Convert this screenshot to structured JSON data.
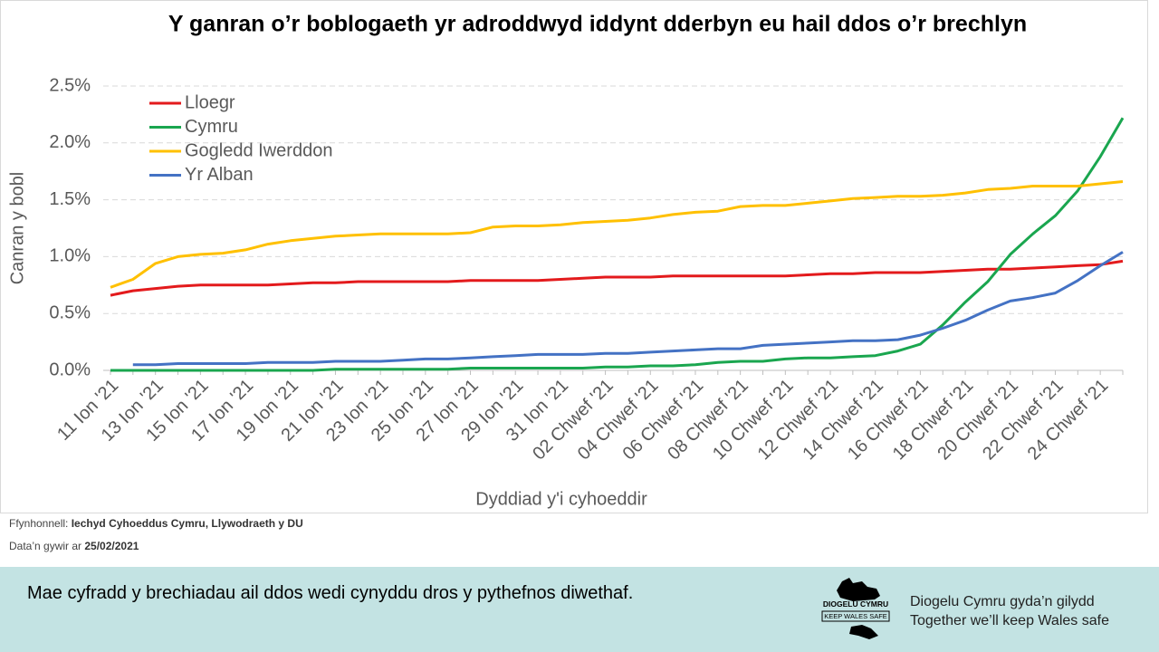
{
  "chart_data": {
    "type": "line",
    "title": "Y ganran o’r boblogaeth yr adroddwyd iddynt dderbyn eu hail ddos o’r brechlyn",
    "x_label": "Dyddiad y'i cyhoeddir",
    "y_label": "Canran y bobl",
    "categories": [
      "11 Ion '21",
      null,
      "13 Ion '21",
      null,
      "15 Ion '21",
      null,
      "17 Ion '21",
      null,
      "19 Ion '21",
      null,
      "21 Ion '21",
      null,
      "23 Ion '21",
      null,
      "25 Ion '21",
      null,
      "27 Ion '21",
      null,
      "29 Ion '21",
      null,
      "31 Ion '21",
      null,
      "02 Chwef '21",
      null,
      "04 Chwef '21",
      null,
      "06 Chwef '21",
      null,
      "08 Chwef '21",
      null,
      "10 Chwef '21",
      null,
      "12 Chwef '21",
      null,
      "14 Chwef '21",
      null,
      "16 Chwef '21",
      null,
      "18 Chwef '21",
      null,
      "20 Chwef '21",
      null,
      "22 Chwef '21",
      null,
      "24 Chwef '21",
      null
    ],
    "series": [
      {
        "name": "Lloegr",
        "color": "#e31a1c",
        "values": [
          0.66,
          0.7,
          0.72,
          0.74,
          0.75,
          0.75,
          0.75,
          0.75,
          0.76,
          0.77,
          0.77,
          0.78,
          0.78,
          0.78,
          0.78,
          0.78,
          0.79,
          0.79,
          0.79,
          0.79,
          0.8,
          0.81,
          0.82,
          0.82,
          0.82,
          0.83,
          0.83,
          0.83,
          0.83,
          0.83,
          0.83,
          0.84,
          0.85,
          0.85,
          0.86,
          0.86,
          0.86,
          0.87,
          0.88,
          0.89,
          0.89,
          0.9,
          0.91,
          0.92,
          0.93,
          0.96
        ]
      },
      {
        "name": "Cymru",
        "color": "#1aa64f",
        "values": [
          0,
          0,
          0,
          0,
          0,
          0,
          0,
          0,
          0,
          0,
          0.01,
          0.01,
          0.01,
          0.01,
          0.01,
          0.01,
          0.02,
          0.02,
          0.02,
          0.02,
          0.02,
          0.02,
          0.03,
          0.03,
          0.04,
          0.04,
          0.05,
          0.07,
          0.08,
          0.08,
          0.1,
          0.11,
          0.11,
          0.12,
          0.13,
          0.17,
          0.23,
          0.4,
          0.6,
          0.78,
          1.02,
          1.2,
          1.36,
          1.58,
          1.88,
          2.22
        ]
      },
      {
        "name": "Gogledd Iwerddon",
        "color": "#ffc000",
        "values": [
          0.73,
          0.8,
          0.94,
          1.0,
          1.02,
          1.03,
          1.06,
          1.11,
          1.14,
          1.16,
          1.18,
          1.19,
          1.2,
          1.2,
          1.2,
          1.2,
          1.21,
          1.26,
          1.27,
          1.27,
          1.28,
          1.3,
          1.31,
          1.32,
          1.34,
          1.37,
          1.39,
          1.4,
          1.44,
          1.45,
          1.45,
          1.47,
          1.49,
          1.51,
          1.52,
          1.53,
          1.53,
          1.54,
          1.56,
          1.59,
          1.6,
          1.62,
          1.62,
          1.62,
          1.64,
          1.66
        ]
      },
      {
        "name": "Yr Alban",
        "color": "#4472c4",
        "values": [
          null,
          0.05,
          0.05,
          0.06,
          0.06,
          0.06,
          0.06,
          0.07,
          0.07,
          0.07,
          0.08,
          0.08,
          0.08,
          0.09,
          0.1,
          0.1,
          0.11,
          0.12,
          0.13,
          0.14,
          0.14,
          0.14,
          0.15,
          0.15,
          0.16,
          0.17,
          0.18,
          0.19,
          0.19,
          0.22,
          0.23,
          0.24,
          0.25,
          0.26,
          0.26,
          0.27,
          0.31,
          0.37,
          0.44,
          0.53,
          0.61,
          0.64,
          0.68,
          0.79,
          0.92,
          1.04
        ]
      }
    ],
    "ylim": [
      0,
      2.5
    ],
    "yticks": [
      {
        "value": 0,
        "label": "0.0%"
      },
      {
        "value": 0.5,
        "label": "0.5%"
      },
      {
        "value": 1,
        "label": "1.0%"
      },
      {
        "value": 1.5,
        "label": "1.5%"
      },
      {
        "value": 2,
        "label": "2.0%"
      },
      {
        "value": 2.5,
        "label": "2.5%"
      }
    ],
    "grid": true,
    "legend": "upper-left"
  },
  "footer": {
    "source_label": "Ffynhonnell:",
    "source": "Iechyd Cyhoeddus Cymru, Llywodraeth y DU",
    "date_label": "Data’n gywir ar",
    "date": "25/02/2021"
  },
  "banner": {
    "message": "Mae cyfradd y brechiadau ail ddos wedi cynyddu dros y pythefnos diwethaf.",
    "logo_top": "DIOGELU CYMRU",
    "logo_bottom": "KEEP WALES SAFE",
    "tagline_cy": "Diogelu Cymru gyda’n gilydd",
    "tagline_en": "Together we’ll keep Wales safe"
  }
}
